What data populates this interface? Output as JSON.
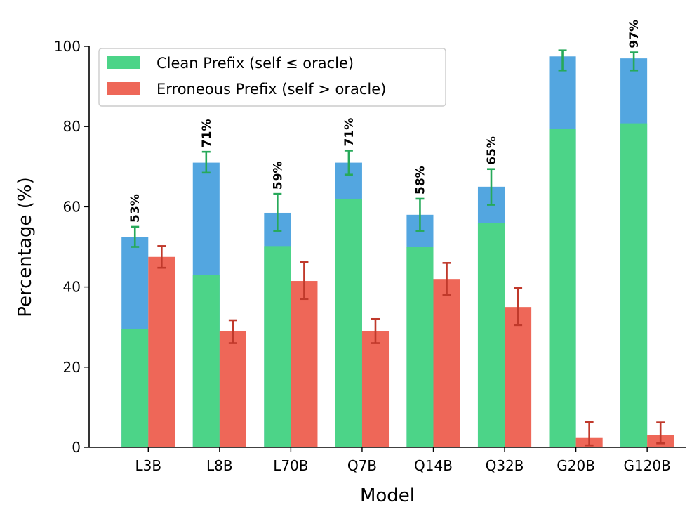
{
  "chart_data": {
    "type": "bar",
    "title": "",
    "xlabel": "Model",
    "ylabel": "Percentage (%)",
    "ylim": [
      0,
      100
    ],
    "yticks": [
      0,
      20,
      40,
      60,
      80,
      100
    ],
    "categories": [
      "L3B",
      "L8B",
      "L70B",
      "Q7B",
      "Q14B",
      "Q32B",
      "G20B",
      "G120B"
    ],
    "series": [
      {
        "name": "Clean Prefix (self ≤ oracle)",
        "color": "#4cd488",
        "values": [
          52.5,
          71.0,
          58.5,
          71.0,
          58.0,
          65.0,
          97.5,
          97.0
        ],
        "error_low": [
          50.0,
          68.5,
          54.0,
          68.0,
          54.0,
          60.5,
          94.0,
          94.0
        ],
        "error_high": [
          55.0,
          73.7,
          63.2,
          74.0,
          62.0,
          69.4,
          99.0,
          98.5
        ],
        "error_color": "#27a95a",
        "bar_labels": [
          "53%",
          "71%",
          "59%",
          "71%",
          "58%",
          "65%",
          "",
          "97%"
        ],
        "overlay_color": "#53a6e0",
        "inner_values": [
          29.5,
          43.0,
          50.2,
          62.0,
          50.0,
          56.0,
          79.5,
          80.8
        ]
      },
      {
        "name": "Erroneous Prefix (self > oracle)",
        "color": "#ee6758",
        "values": [
          47.5,
          29.0,
          41.5,
          29.0,
          42.0,
          35.0,
          2.5,
          3.0
        ],
        "error_low": [
          44.8,
          26.0,
          37.0,
          26.0,
          38.0,
          30.5,
          0.5,
          1.0
        ],
        "error_high": [
          50.2,
          31.7,
          46.2,
          32.0,
          46.0,
          39.8,
          6.3,
          6.2
        ],
        "error_color": "#c0392b"
      }
    ],
    "legend": "top-left",
    "grid": false
  }
}
